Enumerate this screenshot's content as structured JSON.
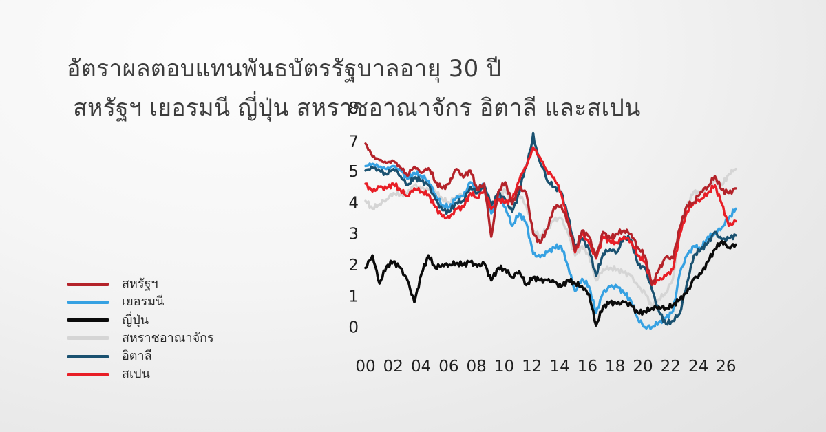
{
  "colors": {
    "background_top": "#fdfdfd",
    "background_bottom": "#e2e2e2",
    "title_text": "#3c3c3c",
    "axis_text": "#1f1f1f",
    "legend_text": "#2b2b2b"
  },
  "title": {
    "line1": "อัตราผลตอบแทนพันธบัตรรัฐบาลอายุ 30 ปี",
    "line2": " สหรัฐฯ เยอรมนี ญี่ปุ่น สหราชอาณาจักร อิตาลี และสเปน"
  },
  "legend": {
    "items": [
      {
        "label": "สหรัฐฯ"
      },
      {
        "label": "เยอรมนี"
      },
      {
        "label": "ญี่ปุ่น"
      },
      {
        "label": "สหราชอาณาจักร"
      },
      {
        "label": "อิตาลี"
      },
      {
        "label": "สเปน"
      }
    ]
  },
  "chart_data": {
    "type": "line",
    "title": "อัตราผลตอบแทนพันธบัตรรัฐบาลอายุ 30 ปี สหรัฐฯ เยอรมนี ญี่ปุ่น สหราชอาณาจักร อิตาลี และสเปน",
    "xlabel": "",
    "ylabel": "",
    "legend_position": "left",
    "grid": false,
    "x_start": 2000,
    "x_step": 0.5,
    "x_tick_labels": [
      "00",
      "02",
      "04",
      "06",
      "08",
      "10",
      "12",
      "14",
      "16",
      "18",
      "20",
      "22",
      "24",
      "26"
    ],
    "y_tick_labels": [
      "8",
      "7",
      "5",
      "4",
      "3",
      "2",
      "1",
      "0"
    ],
    "y_tick_values": [
      8,
      7,
      5,
      4,
      3,
      2,
      1,
      0
    ],
    "ylim": [
      0,
      8
    ],
    "series": [
      {
        "name": "สหรัฐฯ",
        "color": "#b4232a",
        "values": [
          6.85,
          6.0,
          5.75,
          5.55,
          5.7,
          5.25,
          4.85,
          5.3,
          4.95,
          5.2,
          4.65,
          4.45,
          4.6,
          5.15,
          4.8,
          5.05,
          4.4,
          4.6,
          2.9,
          4.35,
          4.65,
          3.95,
          4.5,
          4.3,
          3.0,
          2.7,
          3.15,
          3.85,
          3.9,
          3.35,
          2.45,
          3.1,
          2.9,
          2.25,
          3.05,
          2.85,
          3.0,
          3.1,
          3.0,
          2.55,
          2.3,
          1.35,
          1.85,
          2.25,
          2.2,
          3.2,
          3.9,
          4.0,
          4.35,
          4.5,
          4.85,
          4.4,
          4.3,
          4.45
        ]
      },
      {
        "name": "เยอรมนี",
        "color": "#36a1e2",
        "values": [
          5.35,
          5.5,
          5.3,
          5.15,
          5.35,
          5.05,
          4.75,
          4.95,
          4.85,
          4.7,
          4.25,
          3.9,
          3.85,
          4.15,
          4.2,
          4.65,
          4.4,
          4.6,
          3.65,
          4.2,
          3.85,
          3.25,
          3.65,
          3.35,
          2.35,
          2.25,
          2.4,
          2.55,
          2.6,
          1.95,
          1.15,
          1.55,
          1.3,
          0.45,
          1.1,
          1.3,
          1.3,
          1.1,
          0.85,
          0.25,
          0.0,
          0.0,
          0.15,
          0.3,
          0.5,
          1.75,
          2.3,
          2.6,
          2.5,
          2.9,
          3.0,
          3.2,
          3.5,
          3.8
        ]
      },
      {
        "name": "ญี่ปุ่น",
        "color": "#0b0b0b",
        "values": [
          1.9,
          2.3,
          1.4,
          1.95,
          2.1,
          1.9,
          1.5,
          0.8,
          1.7,
          2.3,
          1.9,
          2.0,
          2.0,
          2.05,
          2.0,
          2.1,
          1.95,
          2.05,
          1.5,
          1.9,
          1.85,
          1.6,
          1.8,
          1.35,
          1.6,
          1.5,
          1.5,
          1.45,
          1.3,
          1.5,
          1.4,
          1.3,
          1.05,
          0.05,
          0.65,
          0.8,
          0.75,
          0.8,
          0.7,
          0.45,
          0.5,
          0.6,
          0.65,
          0.6,
          0.7,
          0.9,
          1.1,
          1.55,
          1.7,
          2.1,
          2.5,
          2.75,
          2.55,
          2.65
        ]
      },
      {
        "name": "สหราชอาณาจักร",
        "color": "#d5d5d5",
        "values": [
          4.05,
          3.8,
          3.95,
          4.1,
          4.3,
          4.25,
          4.3,
          4.55,
          4.45,
          4.4,
          4.35,
          4.1,
          4.0,
          4.2,
          4.25,
          4.5,
          4.35,
          4.5,
          3.9,
          4.2,
          4.4,
          3.95,
          4.25,
          3.9,
          3.1,
          2.9,
          3.15,
          3.45,
          3.5,
          3.0,
          2.3,
          2.6,
          2.3,
          1.5,
          1.85,
          1.9,
          1.85,
          1.75,
          1.65,
          1.3,
          1.1,
          0.65,
          0.9,
          1.1,
          1.55,
          3.1,
          3.9,
          4.35,
          4.3,
          4.5,
          4.7,
          4.55,
          4.9,
          5.15
        ]
      },
      {
        "name": "อิตาลี",
        "color": "#1a5170",
        "values": [
          5.05,
          5.25,
          5.05,
          4.9,
          5.15,
          4.85,
          4.55,
          4.8,
          4.7,
          4.55,
          4.1,
          3.75,
          3.7,
          4.0,
          4.05,
          4.5,
          4.3,
          4.55,
          3.9,
          4.3,
          4.1,
          3.7,
          4.3,
          5.3,
          7.25,
          5.55,
          4.7,
          4.5,
          4.35,
          3.55,
          2.55,
          2.85,
          2.5,
          1.65,
          2.35,
          2.5,
          2.4,
          2.9,
          2.8,
          2.0,
          1.9,
          1.2,
          0.5,
          0.1,
          0.2,
          0.45,
          1.4,
          2.3,
          2.5,
          2.7,
          3.05,
          2.8,
          2.85,
          2.95
        ]
      },
      {
        "name": "สเปน",
        "color": "#e81e26",
        "values": [
          4.6,
          4.35,
          4.5,
          4.45,
          4.6,
          4.4,
          4.2,
          4.45,
          4.35,
          4.25,
          3.85,
          3.55,
          3.5,
          3.8,
          3.85,
          4.3,
          4.15,
          4.4,
          3.8,
          4.1,
          4.0,
          4.1,
          4.7,
          5.3,
          6.6,
          5.9,
          5.0,
          4.8,
          4.3,
          3.4,
          2.4,
          3.0,
          2.7,
          2.2,
          2.9,
          2.75,
          2.7,
          2.9,
          2.75,
          2.3,
          2.1,
          1.4,
          1.5,
          1.65,
          1.85,
          3.0,
          3.7,
          4.0,
          4.1,
          4.3,
          4.55,
          3.95,
          3.25,
          3.4
        ]
      }
    ]
  }
}
